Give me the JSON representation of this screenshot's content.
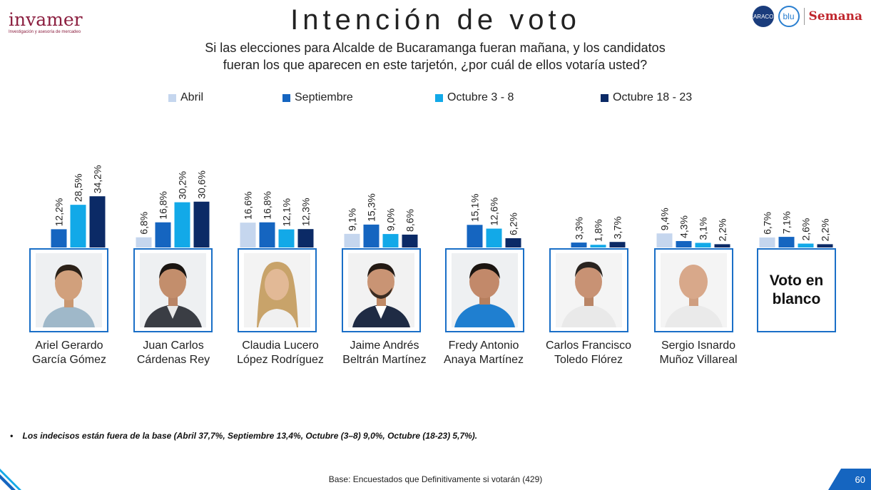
{
  "header": {
    "logo_text": "invamer",
    "logo_tagline": "Investigación y asesoría de mercadeo",
    "title": "Intención de voto",
    "subtitle_line1": "Si las elecciones para Alcalde de Bucaramanga fueran mañana, y los candidatos",
    "subtitle_line2": "fueran los que aparecen en este tarjetón, ¿por cuál de ellos votaría usted?",
    "partner_logo_caracol": "CARACOL",
    "partner_logo_blu": "blu",
    "partner_logo_semana": "Semana"
  },
  "colors": {
    "abril": "#c5d6ee",
    "septiembre": "#1565c0",
    "octubre_3_8": "#12a9e8",
    "octubre_18_23": "#0b2a66",
    "card_border": "#1a6fc7"
  },
  "chart_data": {
    "type": "bar",
    "categories": [
      "Ariel Gerardo García Gómez",
      "Juan Carlos Cárdenas Rey",
      "Claudia Lucero López Rodríguez",
      "Jaime Andrés Beltrán Martínez",
      "Fredy Antonio Anaya Martínez",
      "Carlos Francisco Toledo Flórez",
      "Sergio Isnardo Muñoz Villareal",
      "Voto en blanco"
    ],
    "series": [
      {
        "name": "Abril",
        "values": [
          null,
          6.8,
          16.6,
          9.1,
          null,
          null,
          9.4,
          6.7
        ],
        "labels": [
          "",
          "6,8%",
          "16,6%",
          "9,1%",
          "",
          "",
          "9,4%",
          "6,7%"
        ]
      },
      {
        "name": "Septiembre",
        "values": [
          12.2,
          16.8,
          16.8,
          15.3,
          15.1,
          3.3,
          4.3,
          7.1
        ],
        "labels": [
          "12,2%",
          "16,8%",
          "16,8%",
          "15,3%",
          "15,1%",
          "3,3%",
          "4,3%",
          "7,1%"
        ]
      },
      {
        "name": "Octubre 3 - 8",
        "values": [
          28.5,
          30.2,
          12.1,
          9.0,
          12.6,
          1.8,
          3.1,
          2.6
        ],
        "labels": [
          "28,5%",
          "30,2%",
          "12,1%",
          "9,0%",
          "12,6%",
          "1,8%",
          "3,1%",
          "2,6%"
        ]
      },
      {
        "name": "Octubre 18 - 23",
        "values": [
          34.2,
          30.6,
          12.3,
          8.6,
          6.2,
          3.7,
          2.2,
          2.2
        ],
        "labels": [
          "34,2%",
          "30,6%",
          "12,3%",
          "8,6%",
          "6,2%",
          "3,7%",
          "2,2%",
          "2,2%"
        ]
      }
    ],
    "legend_position": "top"
  },
  "candidates": [
    {
      "line1": "Ariel Gerardo",
      "line2": "García Gómez"
    },
    {
      "line1": "Juan Carlos",
      "line2": "Cárdenas Rey"
    },
    {
      "line1": "Claudia Lucero",
      "line2": "López Rodríguez"
    },
    {
      "line1": "Jaime Andrés",
      "line2": "Beltrán Martínez"
    },
    {
      "line1": "Fredy Antonio",
      "line2": "Anaya Martínez"
    },
    {
      "line1": "Carlos Francisco",
      "line2": "Toledo Flórez"
    },
    {
      "line1": "Sergio Isnardo",
      "line2": "Muñoz Villareal"
    }
  ],
  "blank_vote_card": {
    "line1": "Voto en",
    "line2": "blanco"
  },
  "footer": {
    "bullet": "•",
    "note": "Los indecisos están fuera de la base (Abril 37,7%, Septiembre 13,4%, Octubre (3–8) 9,0%, Octubre (18-23) 5,7%).",
    "base": "Base: Encuestados que Definitivamente si votarán (429)",
    "page_number": "60"
  }
}
